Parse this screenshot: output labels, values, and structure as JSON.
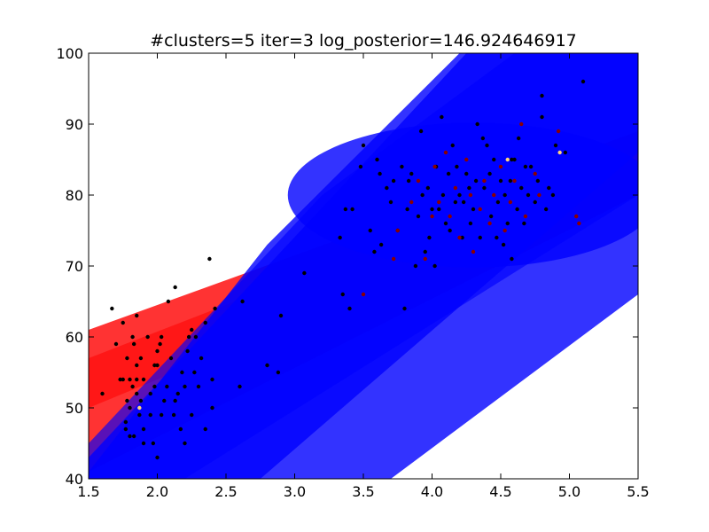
{
  "chart_data": {
    "type": "scatter",
    "title": "#clusters=5 iter=3 log_posterior=146.924646917",
    "xlabel": "",
    "ylabel": "",
    "xlim": [
      1.5,
      5.5
    ],
    "ylim": [
      40,
      100
    ],
    "x_ticks": [
      1.5,
      2.0,
      2.5,
      3.0,
      3.5,
      4.0,
      4.5,
      5.0,
      5.5
    ],
    "x_tick_labels": [
      "1.5",
      "2.0",
      "2.5",
      "3.0",
      "3.5",
      "4.0",
      "4.5",
      "5.0",
      "5.5"
    ],
    "y_ticks": [
      40,
      50,
      60,
      70,
      80,
      90,
      100
    ],
    "y_tick_labels": [
      "40",
      "50",
      "60",
      "70",
      "80",
      "90",
      "100"
    ],
    "grid": false,
    "colors": {
      "red_band": "#ff0000",
      "blue_band": "#0000ff",
      "point_default": "#000000",
      "point_dark_red": "#8b0000",
      "point_light": "#ffd27f",
      "background": "#ffffff"
    },
    "components": [
      {
        "name": "red-band-1",
        "color": "#ff0000",
        "opacity": 0.8,
        "polygon": [
          [
            1.5,
            61
          ],
          [
            5.5,
            89
          ],
          [
            5.5,
            80
          ],
          [
            1.5,
            41
          ]
        ]
      },
      {
        "name": "red-band-2",
        "color": "#ff0000",
        "opacity": 0.55,
        "polygon": [
          [
            1.5,
            57
          ],
          [
            5.5,
            87
          ],
          [
            5.5,
            82
          ],
          [
            1.5,
            50
          ]
        ]
      },
      {
        "name": "blue-band-diagonal",
        "color": "#0000ff",
        "opacity": 0.8,
        "polygon": [
          [
            1.5,
            43
          ],
          [
            4.25,
            100
          ],
          [
            5.5,
            100
          ],
          [
            5.5,
            66
          ],
          [
            3.7,
            40
          ],
          [
            1.5,
            40
          ]
        ]
      },
      {
        "name": "blue-band-wide",
        "color": "#0000ff",
        "opacity": 0.8,
        "polygon": [
          [
            1.5,
            41
          ],
          [
            2.8,
            73
          ],
          [
            4.2,
            100
          ],
          [
            5.5,
            100
          ],
          [
            5.5,
            86
          ],
          [
            2.75,
            40
          ],
          [
            1.5,
            40
          ]
        ]
      },
      {
        "name": "blue-band-3",
        "color": "#0000ff",
        "opacity": 0.65,
        "polygon": [
          [
            1.5,
            40
          ],
          [
            1.5,
            45
          ],
          [
            3.2,
            80
          ],
          [
            4.6,
            100
          ],
          [
            5.5,
            100
          ],
          [
            5.5,
            80
          ],
          [
            2.2,
            40
          ]
        ]
      },
      {
        "name": "blue-ellipse",
        "color": "#0000ff",
        "opacity": 0.8,
        "ellipse": {
          "cx": 4.3,
          "cy": 80,
          "rx": 1.35,
          "ry": 10.2,
          "angle_deg": 0
        }
      }
    ],
    "points": {
      "black": [
        [
          1.6,
          52
        ],
        [
          1.67,
          64
        ],
        [
          1.7,
          59
        ],
        [
          1.73,
          54
        ],
        [
          1.75,
          62
        ],
        [
          1.75,
          54
        ],
        [
          1.77,
          48
        ],
        [
          1.77,
          47
        ],
        [
          1.78,
          51
        ],
        [
          1.78,
          57
        ],
        [
          1.8,
          54
        ],
        [
          1.8,
          50
        ],
        [
          1.8,
          46
        ],
        [
          1.82,
          60
        ],
        [
          1.82,
          53
        ],
        [
          1.83,
          46
        ],
        [
          1.83,
          59
        ],
        [
          1.85,
          63
        ],
        [
          1.85,
          56
        ],
        [
          1.85,
          54
        ],
        [
          1.85,
          52
        ],
        [
          1.87,
          49
        ],
        [
          1.88,
          51
        ],
        [
          1.88,
          57
        ],
        [
          1.9,
          54
        ],
        [
          1.9,
          47
        ],
        [
          1.9,
          45
        ],
        [
          1.93,
          60
        ],
        [
          1.95,
          49
        ],
        [
          1.95,
          52
        ],
        [
          1.97,
          45
        ],
        [
          1.98,
          56
        ],
        [
          1.98,
          53
        ],
        [
          2.0,
          58
        ],
        [
          2.0,
          56
        ],
        [
          2.0,
          43
        ],
        [
          2.02,
          59
        ],
        [
          2.03,
          49
        ],
        [
          2.03,
          60
        ],
        [
          2.05,
          51
        ],
        [
          2.07,
          53
        ],
        [
          2.08,
          65
        ],
        [
          2.1,
          57
        ],
        [
          2.12,
          49
        ],
        [
          2.13,
          51
        ],
        [
          2.13,
          67
        ],
        [
          2.15,
          52
        ],
        [
          2.17,
          47
        ],
        [
          2.18,
          55
        ],
        [
          2.2,
          53
        ],
        [
          2.2,
          45
        ],
        [
          2.22,
          58
        ],
        [
          2.23,
          60
        ],
        [
          2.25,
          49
        ],
        [
          2.25,
          61
        ],
        [
          2.27,
          55
        ],
        [
          2.28,
          60
        ],
        [
          2.3,
          53
        ],
        [
          2.32,
          57
        ],
        [
          2.35,
          62
        ],
        [
          2.35,
          47
        ],
        [
          2.38,
          71
        ],
        [
          2.4,
          54
        ],
        [
          2.4,
          50
        ],
        [
          2.42,
          64
        ],
        [
          2.6,
          53
        ],
        [
          2.62,
          65
        ],
        [
          2.8,
          56
        ],
        [
          2.88,
          55
        ],
        [
          2.9,
          63
        ],
        [
          3.07,
          69
        ],
        [
          3.33,
          74
        ],
        [
          3.35,
          66
        ],
        [
          3.4,
          64
        ],
        [
          3.42,
          78
        ],
        [
          3.48,
          84
        ],
        [
          3.5,
          87
        ],
        [
          3.55,
          75
        ],
        [
          3.58,
          72
        ],
        [
          3.6,
          85
        ],
        [
          3.62,
          83
        ],
        [
          3.67,
          81
        ],
        [
          3.7,
          79
        ],
        [
          3.72,
          82
        ],
        [
          3.75,
          75
        ],
        [
          3.78,
          84
        ],
        [
          3.8,
          64
        ],
        [
          3.82,
          78
        ],
        [
          3.83,
          82
        ],
        [
          3.85,
          83
        ],
        [
          3.88,
          70
        ],
        [
          3.9,
          77
        ],
        [
          3.92,
          89
        ],
        [
          3.93,
          80
        ],
        [
          3.95,
          72
        ],
        [
          3.97,
          81
        ],
        [
          4.0,
          78
        ],
        [
          4.02,
          70
        ],
        [
          4.03,
          84
        ],
        [
          4.05,
          78
        ],
        [
          4.07,
          91
        ],
        [
          4.08,
          80
        ],
        [
          4.1,
          76
        ],
        [
          4.12,
          83
        ],
        [
          4.13,
          75
        ],
        [
          4.15,
          87
        ],
        [
          4.17,
          79
        ],
        [
          4.18,
          84
        ],
        [
          4.2,
          80
        ],
        [
          4.22,
          74
        ],
        [
          4.23,
          79
        ],
        [
          4.25,
          83
        ],
        [
          4.27,
          81
        ],
        [
          4.28,
          76
        ],
        [
          4.3,
          78
        ],
        [
          4.32,
          82
        ],
        [
          4.33,
          90
        ],
        [
          4.35,
          74
        ],
        [
          4.37,
          88
        ],
        [
          4.38,
          81
        ],
        [
          4.4,
          87
        ],
        [
          4.42,
          83
        ],
        [
          4.43,
          77
        ],
        [
          4.45,
          85
        ],
        [
          4.47,
          74
        ],
        [
          4.48,
          79
        ],
        [
          4.5,
          82
        ],
        [
          4.52,
          73
        ],
        [
          4.53,
          80
        ],
        [
          4.55,
          76
        ],
        [
          4.57,
          82
        ],
        [
          4.58,
          71
        ],
        [
          4.6,
          85
        ],
        [
          4.62,
          78
        ],
        [
          4.63,
          88
        ],
        [
          4.65,
          81
        ],
        [
          4.67,
          76
        ],
        [
          4.68,
          84
        ],
        [
          4.7,
          80
        ],
        [
          4.72,
          84
        ],
        [
          4.75,
          79
        ],
        [
          4.77,
          82
        ],
        [
          4.8,
          94
        ],
        [
          4.8,
          91
        ],
        [
          4.83,
          78
        ],
        [
          4.85,
          81
        ],
        [
          4.88,
          80
        ],
        [
          4.9,
          87
        ],
        [
          4.97,
          86
        ],
        [
          5.1,
          96
        ],
        [
          3.37,
          78
        ],
        [
          3.63,
          73
        ],
        [
          3.98,
          74
        ],
        [
          4.58,
          85
        ]
      ],
      "dark_red": [
        [
          3.5,
          66
        ],
        [
          3.72,
          71
        ],
        [
          3.75,
          75
        ],
        [
          3.85,
          79
        ],
        [
          3.9,
          82
        ],
        [
          3.95,
          71
        ],
        [
          4.0,
          77
        ],
        [
          4.02,
          84
        ],
        [
          4.05,
          79
        ],
        [
          4.1,
          86
        ],
        [
          4.13,
          77
        ],
        [
          4.17,
          81
        ],
        [
          4.2,
          74
        ],
        [
          4.25,
          85
        ],
        [
          4.28,
          80
        ],
        [
          4.3,
          72
        ],
        [
          4.35,
          78
        ],
        [
          4.38,
          82
        ],
        [
          4.42,
          76
        ],
        [
          4.45,
          80
        ],
        [
          4.5,
          84
        ],
        [
          4.53,
          75
        ],
        [
          4.57,
          79
        ],
        [
          4.6,
          82
        ],
        [
          4.65,
          90
        ],
        [
          4.68,
          77
        ],
        [
          4.75,
          83
        ],
        [
          4.78,
          80
        ],
        [
          4.92,
          89
        ],
        [
          5.05,
          77
        ],
        [
          5.07,
          76
        ]
      ],
      "light": [
        [
          1.87,
          50
        ],
        [
          4.55,
          85
        ],
        [
          4.93,
          86
        ]
      ]
    }
  }
}
